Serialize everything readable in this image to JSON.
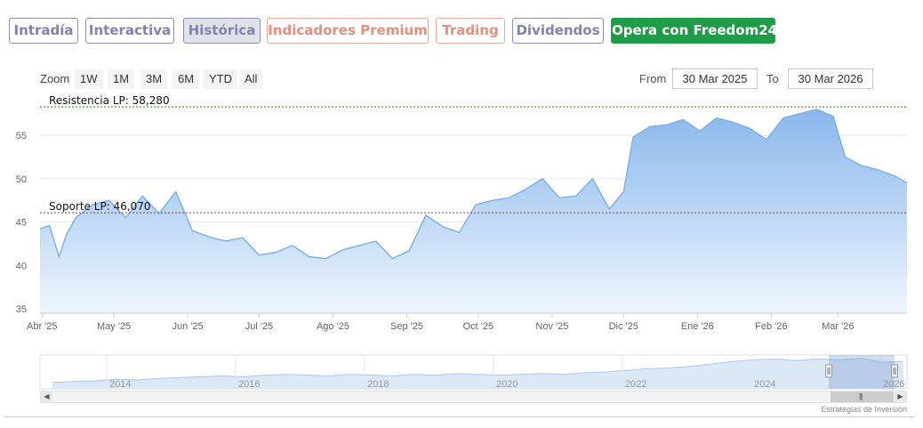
{
  "tabs": [
    {
      "label": "Intradía",
      "style": "purple"
    },
    {
      "label": "Interactiva",
      "style": "purple"
    },
    {
      "label": "Histórica",
      "style": "purple active"
    },
    {
      "label": "Indicadores Premium",
      "style": "salmon"
    },
    {
      "label": "Trading",
      "style": "salmon"
    },
    {
      "label": "Dividendos",
      "style": "purple"
    },
    {
      "label": "Opera con Freedom24",
      "style": "green"
    }
  ],
  "range_selector": {
    "zoom_label": "Zoom",
    "buttons": [
      "1W",
      "1M",
      "3M",
      "6M",
      "YTD",
      "All"
    ],
    "from_label": "From",
    "from_value": "30 Mar 2025",
    "to_label": "To",
    "to_value": "30 Mar 2026"
  },
  "credit": "Estrategias de Inversión",
  "colors": {
    "line": "#7aaee6",
    "fill_top": "#8ab8ec",
    "fill_bottom": "#eef5fd",
    "resistance": "#2e6b2a",
    "support": "#a03030"
  },
  "chart_data": {
    "type": "area",
    "x": [
      "2025-03-31",
      "2025-04-04",
      "2025-04-08",
      "2025-04-11",
      "2025-04-15",
      "2025-04-22",
      "2025-04-29",
      "2025-05-06",
      "2025-05-13",
      "2025-05-20",
      "2025-05-27",
      "2025-06-03",
      "2025-06-10",
      "2025-06-17",
      "2025-06-24",
      "2025-07-01",
      "2025-07-08",
      "2025-07-15",
      "2025-07-22",
      "2025-07-29",
      "2025-08-05",
      "2025-08-12",
      "2025-08-19",
      "2025-08-26",
      "2025-09-02",
      "2025-09-09",
      "2025-09-16",
      "2025-09-23",
      "2025-09-30",
      "2025-10-07",
      "2025-10-14",
      "2025-10-21",
      "2025-10-28",
      "2025-11-04",
      "2025-11-11",
      "2025-11-18",
      "2025-11-25",
      "2025-12-01",
      "2025-12-05",
      "2025-12-12",
      "2025-12-19",
      "2025-12-26",
      "2026-01-02",
      "2026-01-09",
      "2026-01-16",
      "2026-01-23",
      "2026-01-30",
      "2026-02-06",
      "2026-02-13",
      "2026-02-20",
      "2026-02-27",
      "2026-03-04",
      "2026-03-11",
      "2026-03-18",
      "2026-03-25",
      "2026-03-30"
    ],
    "y": [
      44.2,
      44.6,
      41.0,
      43.5,
      45.5,
      47.0,
      47.5,
      45.5,
      48.0,
      46.0,
      48.5,
      44.0,
      43.3,
      42.8,
      43.2,
      41.2,
      41.5,
      42.3,
      41.0,
      40.8,
      41.8,
      42.3,
      42.8,
      40.8,
      41.7,
      45.8,
      44.5,
      43.8,
      47.0,
      47.5,
      47.8,
      48.8,
      50.0,
      47.8,
      48.0,
      50.0,
      46.5,
      48.5,
      54.8,
      56.0,
      56.2,
      56.8,
      55.5,
      57.0,
      56.5,
      55.8,
      54.5,
      57.0,
      57.5,
      58.0,
      57.2,
      52.5,
      51.5,
      51.0,
      50.3,
      49.5
    ],
    "x_ticks": [
      "Abr '25",
      "May '25",
      "Jun '25",
      "Jul '25",
      "Ago '25",
      "Sep '25",
      "Oct '25",
      "Nov '25",
      "Dic '25",
      "Ene '26",
      "Feb '26",
      "Mar '26"
    ],
    "y_ticks": [
      "35",
      "40",
      "45",
      "50",
      "55"
    ],
    "ylim": [
      34.5,
      58.8
    ],
    "series_name": "",
    "annotations": [
      {
        "label": "Resistencia LP: 58,280",
        "value": 58.28
      },
      {
        "label": "Soporte LP: 46,070",
        "value": 46.07
      }
    ],
    "grid": true,
    "legend": "none",
    "navigator": {
      "x_ticks": [
        "2014",
        "2016",
        "2018",
        "2020",
        "2022",
        "2024",
        "2026"
      ],
      "values": [
        28,
        29,
        30,
        32,
        31,
        33,
        34,
        35,
        36,
        35,
        37,
        38,
        37,
        36,
        38,
        37,
        36,
        38,
        37,
        39,
        38,
        37,
        38,
        39,
        38,
        40,
        41,
        43,
        45,
        46,
        48,
        51,
        54,
        56,
        57,
        55,
        57,
        56,
        58,
        53,
        54
      ],
      "selected_range": [
        "2025-03-30",
        "2026-03-30"
      ]
    }
  }
}
